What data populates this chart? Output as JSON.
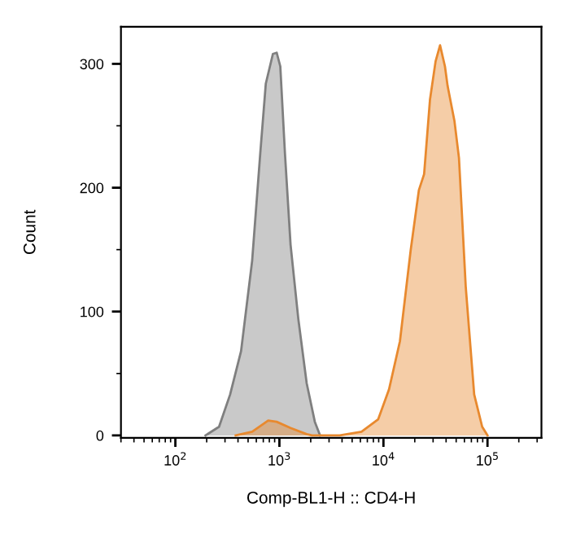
{
  "chart_data": {
    "type": "area",
    "xlabel": "Comp-BL1-H :: CD4-H",
    "ylabel": "Count",
    "log": "x",
    "grid": false,
    "legend": false,
    "xlim": [
      30,
      330000
    ],
    "ylim": [
      -2,
      330
    ],
    "xticks": [
      {
        "value": 100,
        "label": "10$^{2}$"
      },
      {
        "value": 1000,
        "label": "10$^{3}$"
      },
      {
        "value": 10000,
        "label": "10$^{4}$"
      },
      {
        "value": 100000,
        "label": "10$^{5}$"
      }
    ],
    "yticks": [
      0,
      100,
      200,
      300
    ],
    "series": [
      {
        "color": "#7f7f7f",
        "x": [
          195,
          263,
          336,
          428,
          547,
          655,
          740,
          866,
          942,
          1020,
          1130,
          1280,
          1520,
          1830,
          2190,
          2460
        ],
        "values": [
          0,
          7,
          33,
          68,
          141,
          228,
          284,
          308,
          309,
          298,
          228,
          154,
          94,
          42,
          11,
          0
        ]
      },
      {
        "color": "#e8892e",
        "x": [
          380,
          547,
          780,
          940,
          1280,
          1830,
          2060,
          3800,
          6150,
          8900,
          11300,
          14400,
          18300,
          21900,
          24600,
          28000,
          31700,
          35000,
          39000,
          41400,
          48100,
          53200,
          61800,
          74500,
          88900,
          100000
        ],
        "values": [
          0,
          3,
          12,
          11,
          6,
          1,
          0,
          0,
          3,
          13,
          37,
          76,
          150,
          198,
          211,
          271,
          302,
          315,
          298,
          282,
          254,
          224,
          120,
          33,
          7,
          0
        ]
      }
    ]
  }
}
